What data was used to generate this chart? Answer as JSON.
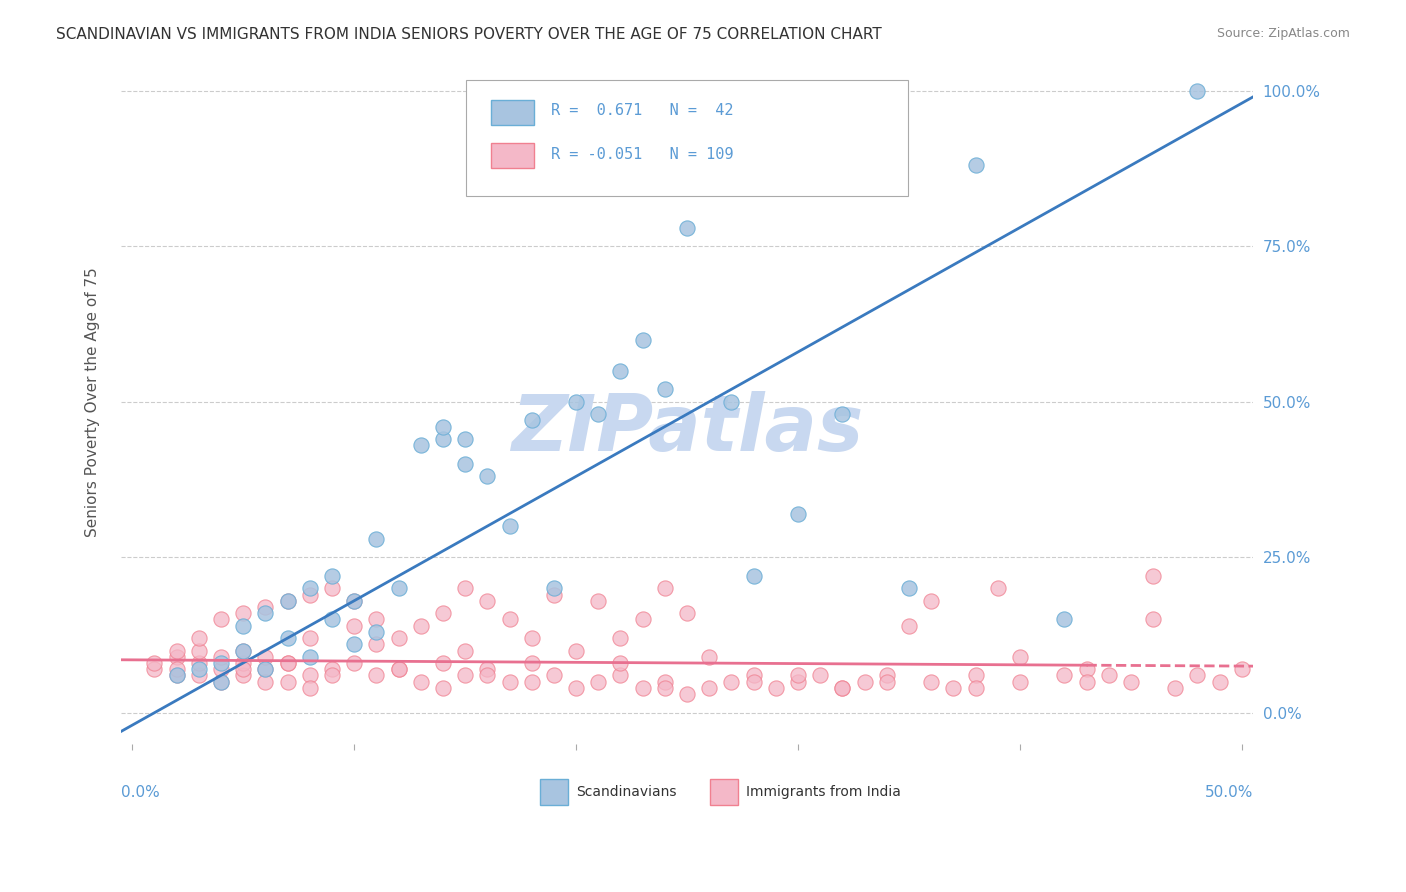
{
  "title": "SCANDINAVIAN VS IMMIGRANTS FROM INDIA SENIORS POVERTY OVER THE AGE OF 75 CORRELATION CHART",
  "source": "Source: ZipAtlas.com",
  "ylabel": "Seniors Poverty Over the Age of 75",
  "ytick_labels": [
    "0.0%",
    "25.0%",
    "50.0%",
    "75.0%",
    "100.0%"
  ],
  "ytick_values": [
    0.0,
    0.25,
    0.5,
    0.75,
    1.0
  ],
  "xlim": [
    0.0,
    0.5
  ],
  "ylim": [
    -0.05,
    1.05
  ],
  "blue_R": 0.671,
  "blue_N": 42,
  "pink_R": -0.051,
  "pink_N": 109,
  "blue_color": "#a8c4e0",
  "blue_edge": "#6aaed6",
  "pink_color": "#f4b8c8",
  "pink_edge": "#f08090",
  "blue_line_color": "#3a7abf",
  "pink_line_color": "#e87090",
  "watermark": "ZIPatlas",
  "watermark_color": "#c8d8f0",
  "legend_label_blue": "Scandinavians",
  "legend_label_pink": "Immigrants from India",
  "blue_scatter_x": [
    0.02,
    0.03,
    0.04,
    0.04,
    0.05,
    0.05,
    0.06,
    0.06,
    0.07,
    0.07,
    0.08,
    0.08,
    0.09,
    0.09,
    0.1,
    0.1,
    0.11,
    0.11,
    0.12,
    0.13,
    0.14,
    0.14,
    0.15,
    0.15,
    0.16,
    0.17,
    0.18,
    0.19,
    0.2,
    0.21,
    0.22,
    0.23,
    0.24,
    0.25,
    0.27,
    0.28,
    0.3,
    0.32,
    0.35,
    0.38,
    0.42,
    0.48
  ],
  "blue_scatter_y": [
    0.06,
    0.07,
    0.05,
    0.08,
    0.1,
    0.14,
    0.07,
    0.16,
    0.12,
    0.18,
    0.09,
    0.2,
    0.15,
    0.22,
    0.11,
    0.18,
    0.13,
    0.28,
    0.2,
    0.43,
    0.44,
    0.46,
    0.4,
    0.44,
    0.38,
    0.3,
    0.47,
    0.2,
    0.5,
    0.48,
    0.55,
    0.6,
    0.52,
    0.78,
    0.5,
    0.22,
    0.32,
    0.48,
    0.2,
    0.88,
    0.15,
    1.0
  ],
  "pink_scatter_x": [
    0.01,
    0.01,
    0.02,
    0.02,
    0.02,
    0.02,
    0.03,
    0.03,
    0.03,
    0.03,
    0.04,
    0.04,
    0.04,
    0.04,
    0.05,
    0.05,
    0.05,
    0.05,
    0.06,
    0.06,
    0.06,
    0.07,
    0.07,
    0.07,
    0.08,
    0.08,
    0.08,
    0.09,
    0.09,
    0.1,
    0.1,
    0.1,
    0.11,
    0.11,
    0.11,
    0.12,
    0.12,
    0.13,
    0.13,
    0.14,
    0.14,
    0.15,
    0.15,
    0.15,
    0.16,
    0.16,
    0.17,
    0.17,
    0.18,
    0.18,
    0.19,
    0.19,
    0.2,
    0.2,
    0.21,
    0.21,
    0.22,
    0.22,
    0.23,
    0.23,
    0.24,
    0.24,
    0.25,
    0.25,
    0.26,
    0.27,
    0.28,
    0.29,
    0.3,
    0.31,
    0.32,
    0.33,
    0.34,
    0.35,
    0.36,
    0.37,
    0.38,
    0.39,
    0.4,
    0.42,
    0.43,
    0.44,
    0.45,
    0.46,
    0.47,
    0.48,
    0.49,
    0.5,
    0.22,
    0.24,
    0.26,
    0.28,
    0.3,
    0.32,
    0.34,
    0.36,
    0.38,
    0.4,
    0.43,
    0.46,
    0.05,
    0.06,
    0.07,
    0.08,
    0.09,
    0.12,
    0.14,
    0.16,
    0.18
  ],
  "pink_scatter_y": [
    0.07,
    0.08,
    0.06,
    0.09,
    0.07,
    0.1,
    0.06,
    0.08,
    0.1,
    0.12,
    0.05,
    0.07,
    0.09,
    0.15,
    0.06,
    0.08,
    0.16,
    0.1,
    0.07,
    0.09,
    0.17,
    0.05,
    0.08,
    0.18,
    0.06,
    0.12,
    0.19,
    0.07,
    0.2,
    0.08,
    0.14,
    0.18,
    0.06,
    0.11,
    0.15,
    0.07,
    0.12,
    0.05,
    0.14,
    0.08,
    0.16,
    0.06,
    0.1,
    0.2,
    0.07,
    0.18,
    0.05,
    0.15,
    0.08,
    0.12,
    0.06,
    0.19,
    0.04,
    0.1,
    0.05,
    0.18,
    0.06,
    0.12,
    0.04,
    0.15,
    0.05,
    0.2,
    0.03,
    0.16,
    0.04,
    0.05,
    0.06,
    0.04,
    0.05,
    0.06,
    0.04,
    0.05,
    0.06,
    0.14,
    0.05,
    0.04,
    0.06,
    0.2,
    0.05,
    0.06,
    0.07,
    0.06,
    0.05,
    0.15,
    0.04,
    0.06,
    0.05,
    0.07,
    0.08,
    0.04,
    0.09,
    0.05,
    0.06,
    0.04,
    0.05,
    0.18,
    0.04,
    0.09,
    0.05,
    0.22,
    0.07,
    0.05,
    0.08,
    0.04,
    0.06,
    0.07,
    0.04,
    0.06,
    0.05
  ]
}
